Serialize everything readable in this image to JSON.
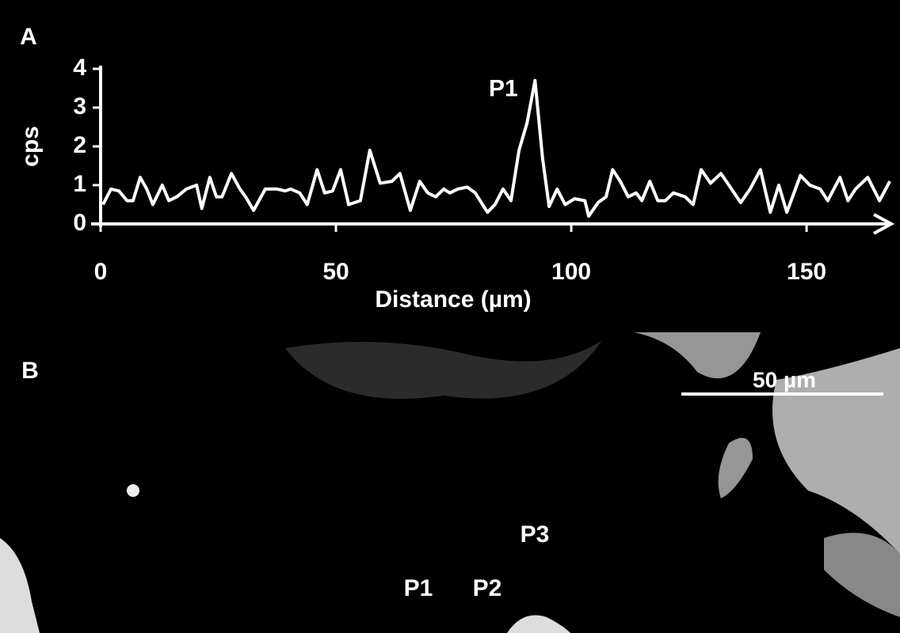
{
  "chart_data": {
    "type": "line",
    "panel_label": "A",
    "xlabel": "Distance (µm)",
    "ylabel": "cps",
    "x": [
      0.5,
      2.2,
      3.9,
      5.6,
      6.9,
      8.4,
      9.8,
      11.1,
      13.1,
      14.5,
      16.2,
      18.2,
      20.4,
      21.5,
      23.2,
      24.6,
      25.8,
      27.8,
      29.6,
      30.8,
      32.5,
      35.0,
      37.5,
      39.2,
      40.4,
      42.3,
      43.9,
      46.0,
      47.6,
      49.3,
      51.0,
      52.7,
      55.2,
      57.2,
      59.4,
      61.9,
      63.6,
      65.8,
      67.8,
      69.5,
      71.2,
      72.9,
      74.2,
      75.9,
      77.9,
      79.6,
      82.2,
      83.8,
      85.5,
      87.2,
      88.9,
      90.6,
      92.3,
      93.9,
      95.3,
      97.0,
      98.7,
      100.7,
      102.9,
      103.7,
      105.7,
      107.4,
      108.8,
      110.4,
      112.1,
      113.8,
      115.0,
      116.7,
      118.4,
      120.0,
      121.7,
      124.2,
      125.9,
      127.6,
      129.6,
      131.8,
      133.5,
      136.0,
      138.0,
      140.2,
      142.3,
      144.1,
      145.8,
      148.7,
      150.7,
      152.9,
      154.5,
      157.1,
      158.8,
      160.4,
      163.0,
      165.5,
      167.7
    ],
    "values": [
      0.5,
      0.9,
      0.85,
      0.6,
      0.6,
      1.2,
      0.9,
      0.5,
      1.0,
      0.6,
      0.7,
      0.9,
      1.0,
      0.4,
      1.2,
      0.7,
      0.7,
      1.3,
      0.9,
      0.7,
      0.35,
      0.9,
      0.9,
      0.85,
      0.9,
      0.8,
      0.5,
      1.4,
      0.8,
      0.85,
      1.4,
      0.5,
      0.6,
      1.9,
      1.05,
      1.1,
      1.3,
      0.35,
      1.1,
      0.8,
      0.7,
      0.9,
      0.8,
      0.9,
      0.95,
      0.8,
      0.3,
      0.5,
      0.9,
      0.6,
      1.9,
      2.6,
      3.7,
      1.7,
      0.45,
      0.9,
      0.5,
      0.65,
      0.6,
      0.2,
      0.55,
      0.7,
      1.4,
      1.1,
      0.7,
      0.8,
      0.6,
      1.1,
      0.6,
      0.6,
      0.8,
      0.7,
      0.5,
      1.4,
      1.05,
      1.3,
      1.0,
      0.55,
      0.9,
      1.4,
      0.3,
      1.0,
      0.3,
      1.25,
      1.0,
      0.9,
      0.6,
      1.2,
      0.6,
      0.9,
      1.2,
      0.6,
      1.1
    ],
    "color": "#ffffff",
    "xlim": [
      0,
      168
    ],
    "xticks": [
      0,
      50,
      100,
      150
    ],
    "ylim": [
      0,
      4
    ],
    "yticks": [
      0,
      1,
      2,
      3,
      4
    ],
    "annotations": [
      {
        "text": "P1"
      }
    ]
  },
  "image_panel": {
    "panel_label": "B",
    "scale_bar": "50 µm",
    "points": [
      "P1",
      "P2",
      "P3"
    ]
  }
}
